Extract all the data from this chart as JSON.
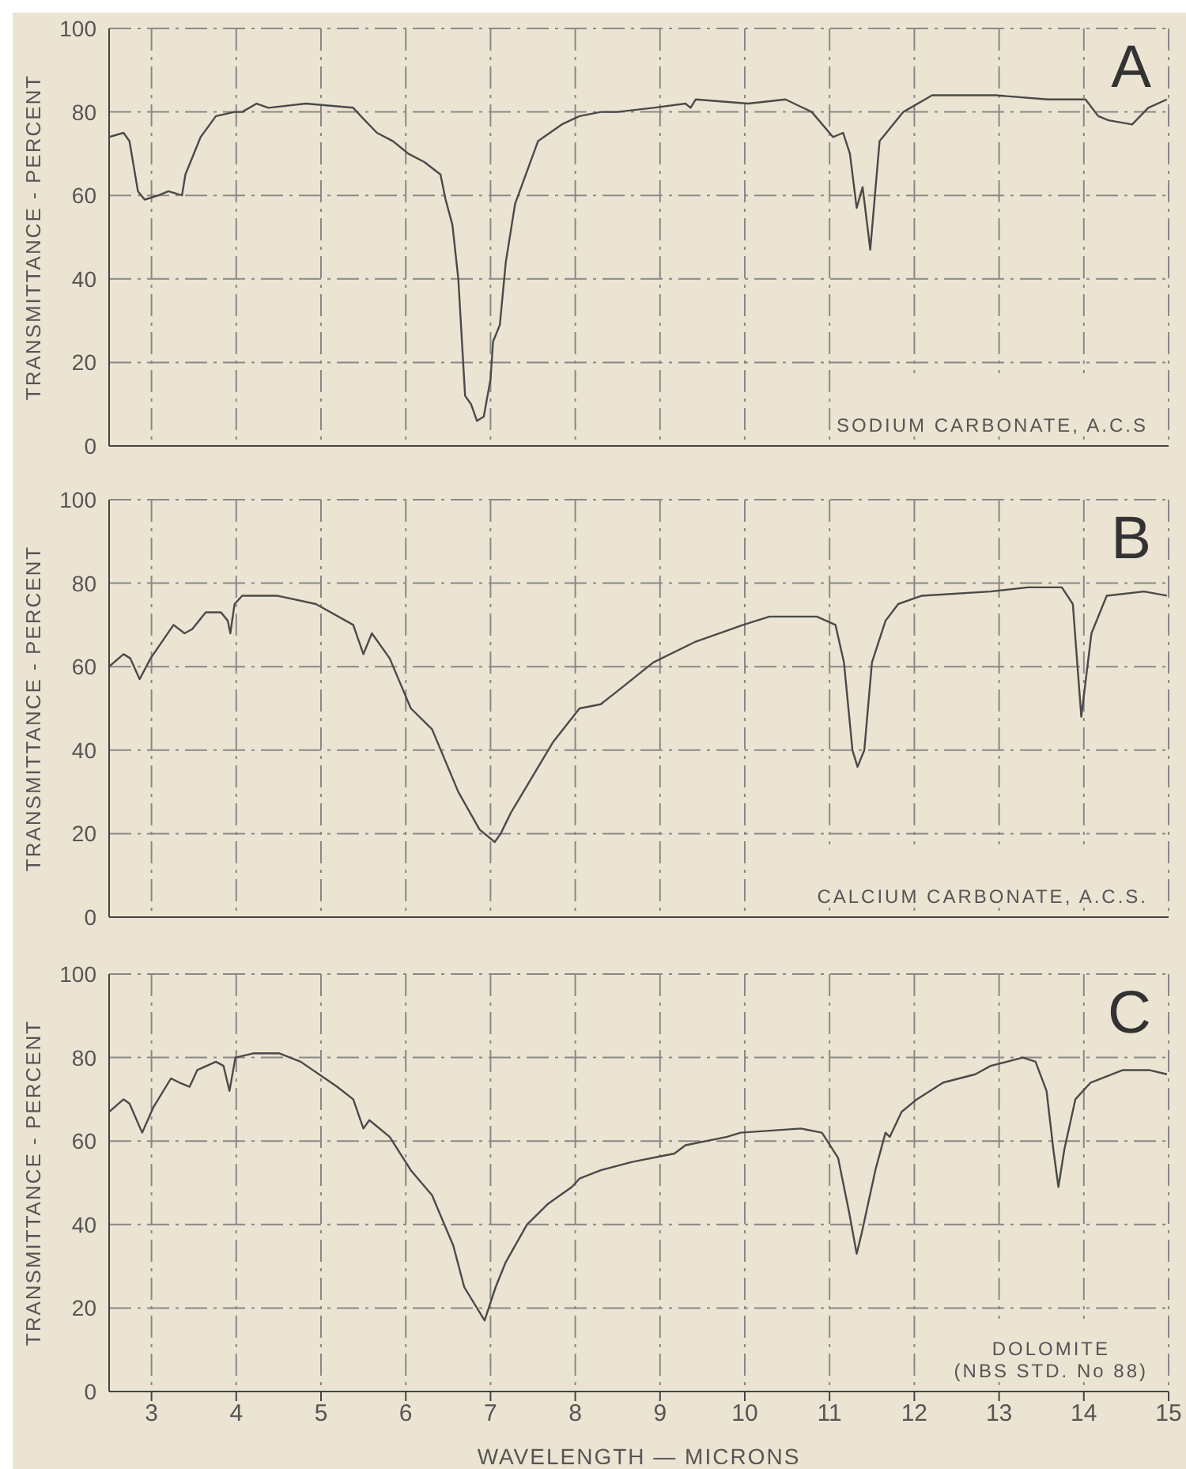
{
  "chart_data": [
    {
      "type": "line",
      "title": "A",
      "ylabel": "TRANSMITTANCE - PERCENT",
      "annotations": [
        "SODIUM CARBONATE, A.C.S"
      ],
      "color": "#4a4a4a",
      "marker": "none",
      "grid": true,
      "tick_labels": "y",
      "xlim": [
        2.5,
        15
      ],
      "xticks": [
        3,
        4,
        5,
        6,
        7,
        8,
        9,
        10,
        11,
        12,
        13,
        14,
        15
      ],
      "ylim": [
        0,
        100
      ],
      "yticks": [
        0,
        20,
        40,
        60,
        80,
        100
      ],
      "x": [
        2.5,
        2.67,
        2.74,
        2.84,
        2.92,
        3.08,
        3.2,
        3.36,
        3.4,
        3.58,
        3.76,
        3.98,
        4.07,
        4.24,
        4.38,
        4.82,
        5.38,
        5.47,
        5.66,
        5.85,
        6.03,
        6.22,
        6.41,
        6.47,
        6.55,
        6.62,
        6.7,
        6.77,
        6.84,
        6.92,
        7.0,
        7.03,
        7.11,
        7.18,
        7.29,
        7.56,
        7.84,
        8.05,
        8.3,
        8.49,
        8.92,
        9.3,
        9.36,
        9.42,
        10.04,
        10.48,
        10.79,
        11.04,
        11.16,
        11.24,
        11.32,
        11.39,
        11.48,
        11.59,
        11.87,
        12.21,
        12.96,
        13.58,
        14.02,
        14.17,
        14.29,
        14.57,
        14.76,
        14.98
      ],
      "values": [
        74,
        75,
        73,
        61,
        59,
        60,
        61,
        60,
        65,
        74,
        79,
        80,
        80,
        82,
        81,
        82,
        81,
        79,
        75,
        73,
        70,
        68,
        65,
        59,
        53,
        40,
        12,
        10,
        6,
        7,
        16,
        25,
        29,
        44,
        58,
        73,
        77,
        79,
        80,
        80,
        81,
        82,
        81,
        83,
        82,
        83,
        80,
        74,
        75,
        70,
        57,
        62,
        47,
        73,
        80,
        84,
        84,
        83,
        83,
        79,
        78,
        77,
        81,
        83
      ]
    },
    {
      "type": "line",
      "title": "B",
      "ylabel": "TRANSMITTANCE - PERCENT",
      "annotations": [
        "CALCIUM CARBONATE, A.C.S."
      ],
      "color": "#4a4a4a",
      "marker": "none",
      "grid": true,
      "tick_labels": "y",
      "xlim": [
        2.5,
        15
      ],
      "xticks": [
        3,
        4,
        5,
        6,
        7,
        8,
        9,
        10,
        11,
        12,
        13,
        14,
        15
      ],
      "ylim": [
        0,
        100
      ],
      "yticks": [
        0,
        20,
        40,
        60,
        80,
        100
      ],
      "x": [
        2.5,
        2.67,
        2.75,
        2.86,
        2.99,
        3.26,
        3.39,
        3.48,
        3.64,
        3.82,
        3.9,
        3.93,
        3.98,
        4.07,
        4.48,
        4.94,
        5.38,
        5.5,
        5.6,
        5.81,
        6.06,
        6.31,
        6.62,
        6.87,
        7.05,
        7.12,
        7.24,
        7.74,
        8.05,
        8.3,
        8.55,
        8.92,
        9.42,
        9.98,
        10.29,
        10.85,
        11.07,
        11.17,
        11.27,
        11.33,
        11.41,
        11.5,
        11.66,
        11.81,
        12.09,
        12.9,
        13.34,
        13.74,
        13.87,
        13.97,
        14.09,
        14.27,
        14.71,
        14.98
      ],
      "values": [
        60,
        63,
        62,
        57,
        62,
        70,
        68,
        69,
        73,
        73,
        71,
        68,
        75,
        77,
        77,
        75,
        70,
        63,
        68,
        62,
        50,
        45,
        30,
        21,
        18,
        20,
        25,
        42,
        50,
        51,
        55,
        61,
        66,
        70,
        72,
        72,
        70,
        61,
        40,
        36,
        40,
        61,
        71,
        75,
        77,
        78,
        79,
        79,
        75,
        48,
        68,
        77,
        78,
        77
      ]
    },
    {
      "type": "line",
      "title": "C",
      "ylabel": "TRANSMITTANCE - PERCENT",
      "xlabel": "WAVELENGTH — MICRONS",
      "annotations": [
        "DOLOMITE\n(NBS STD. No 88)"
      ],
      "color": "#4a4a4a",
      "marker": "none",
      "grid": true,
      "xlim": [
        2.5,
        15
      ],
      "xticks": [
        3,
        4,
        5,
        6,
        7,
        8,
        9,
        10,
        11,
        12,
        13,
        14,
        15
      ],
      "ylim": [
        0,
        100
      ],
      "yticks": [
        0,
        20,
        40,
        60,
        80,
        100
      ],
      "x": [
        2.5,
        2.67,
        2.74,
        2.89,
        3.02,
        3.23,
        3.33,
        3.45,
        3.54,
        3.76,
        3.85,
        3.92,
        3.99,
        4.2,
        4.51,
        4.76,
        5.19,
        5.38,
        5.5,
        5.57,
        5.81,
        6.06,
        6.31,
        6.56,
        6.69,
        6.93,
        7.06,
        7.18,
        7.43,
        7.68,
        7.96,
        8.05,
        8.3,
        8.67,
        9.17,
        9.3,
        9.79,
        9.95,
        10.66,
        10.91,
        11.1,
        11.23,
        11.32,
        11.38,
        11.54,
        11.66,
        11.71,
        11.85,
        12.03,
        12.34,
        12.72,
        12.9,
        13.28,
        13.43,
        13.56,
        13.64,
        13.7,
        13.77,
        13.9,
        14.08,
        14.46,
        14.77,
        14.98
      ],
      "values": [
        67,
        70,
        69,
        62,
        68,
        75,
        74,
        73,
        77,
        79,
        78,
        72,
        80,
        81,
        81,
        79,
        73,
        70,
        63,
        65,
        61,
        53,
        47,
        35,
        25,
        17,
        25,
        31,
        40,
        45,
        49,
        51,
        53,
        55,
        57,
        59,
        61,
        62,
        63,
        62,
        56,
        43,
        33,
        38,
        53,
        62,
        61,
        67,
        70,
        74,
        76,
        78,
        80,
        79,
        72,
        58,
        49,
        58,
        70,
        74,
        77,
        77,
        76
      ]
    }
  ]
}
